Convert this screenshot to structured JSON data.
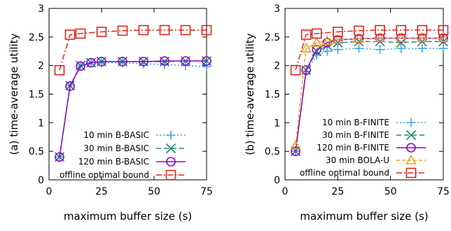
{
  "chart_data": [
    {
      "type": "line",
      "panel_label": "(a)",
      "ylabel": "time-average utility",
      "xlabel": "maximum buffer size (s)",
      "xlim": [
        0,
        75
      ],
      "ylim": [
        0,
        3
      ],
      "xticks": [
        0,
        25,
        50,
        75
      ],
      "yticks": [
        0,
        0.5,
        1,
        1.5,
        2,
        2.5,
        3
      ],
      "ytick_labels": [
        "0",
        "0.5",
        "1",
        "1.5",
        "2",
        "2.5",
        "3"
      ],
      "legend_position": "bottom-right",
      "series": [
        {
          "name": "10 min B-BASIC",
          "color": "#3fa9e0",
          "dash": "2,3",
          "marker": "plus",
          "x": [
            5,
            10,
            15,
            20,
            25,
            35,
            45,
            55,
            65,
            75
          ],
          "y": [
            0.4,
            1.65,
            2.0,
            2.05,
            2.05,
            2.05,
            2.03,
            2.02,
            2.0,
            1.98
          ]
        },
        {
          "name": "30 min B-BASIC",
          "color": "#1f8c6e",
          "dash": "7,4",
          "marker": "cross",
          "x": [
            5,
            10,
            15,
            20,
            25,
            35,
            45,
            55,
            65,
            75
          ],
          "y": [
            0.4,
            1.65,
            2.0,
            2.05,
            2.07,
            2.07,
            2.07,
            2.07,
            2.08,
            2.08
          ]
        },
        {
          "name": "120 min B-BASIC",
          "color": "#9400d3",
          "dash": "",
          "marker": "circle",
          "x": [
            5,
            10,
            15,
            20,
            25,
            35,
            45,
            55,
            65,
            75
          ],
          "y": [
            0.4,
            1.64,
            1.99,
            2.05,
            2.07,
            2.07,
            2.07,
            2.08,
            2.08,
            2.08
          ]
        },
        {
          "name": "offline optimal bound",
          "color": "#e2231a",
          "dash": "8,3,2,3",
          "marker": "square",
          "x": [
            5,
            10,
            15,
            25,
            35,
            45,
            55,
            65,
            75
          ],
          "y": [
            1.92,
            2.54,
            2.56,
            2.59,
            2.61,
            2.62,
            2.62,
            2.62,
            2.62
          ]
        }
      ]
    },
    {
      "type": "line",
      "panel_label": "(b)",
      "ylabel": "time-average utility",
      "xlabel": "maximum buffer size (s)",
      "xlim": [
        0,
        75
      ],
      "ylim": [
        0,
        3
      ],
      "xticks": [
        0,
        25,
        50,
        75
      ],
      "yticks": [
        0,
        0.5,
        1,
        1.5,
        2,
        2.5,
        3
      ],
      "ytick_labels": [
        "0",
        "0.5",
        "1",
        "1.5",
        "2",
        "2.5",
        "3"
      ],
      "legend_position": "bottom-right",
      "series": [
        {
          "name": "10 min B-FINITE",
          "color": "#3fa9e0",
          "dash": "2,3",
          "marker": "plus",
          "x": [
            5,
            10,
            15,
            20,
            25,
            35,
            45,
            55,
            65,
            75
          ],
          "y": [
            0.5,
            1.9,
            2.18,
            2.25,
            2.28,
            2.3,
            2.28,
            2.3,
            2.3,
            2.3
          ]
        },
        {
          "name": "30 min B-FINITE",
          "color": "#1f8c6e",
          "dash": "7,4",
          "marker": "cross",
          "x": [
            5,
            10,
            15,
            20,
            25,
            35,
            45,
            55,
            65,
            75
          ],
          "y": [
            0.5,
            1.92,
            2.25,
            2.35,
            2.4,
            2.42,
            2.42,
            2.4,
            2.42,
            2.42
          ]
        },
        {
          "name": "120 min B-FINITE",
          "color": "#9400d3",
          "dash": "",
          "marker": "circle",
          "x": [
            5,
            10,
            15,
            20,
            25,
            35,
            45,
            55,
            65,
            75
          ],
          "y": [
            0.5,
            1.92,
            2.28,
            2.4,
            2.45,
            2.47,
            2.48,
            2.48,
            2.48,
            2.48
          ]
        },
        {
          "name": "30 min BOLA-U",
          "color": "#e8a21f",
          "dash": "5,3",
          "marker": "triangle",
          "x": [
            5,
            10,
            15,
            20,
            25,
            35,
            45,
            55,
            65,
            75
          ],
          "y": [
            0.6,
            2.3,
            2.4,
            2.43,
            2.45,
            2.47,
            2.48,
            2.48,
            2.48,
            2.48
          ]
        },
        {
          "name": "offline optimal bound",
          "color": "#e2231a",
          "dash": "8,3,2,3",
          "marker": "square",
          "x": [
            5,
            10,
            15,
            25,
            35,
            45,
            55,
            65,
            75
          ],
          "y": [
            1.92,
            2.54,
            2.56,
            2.59,
            2.61,
            2.62,
            2.62,
            2.62,
            2.62
          ]
        }
      ]
    }
  ]
}
